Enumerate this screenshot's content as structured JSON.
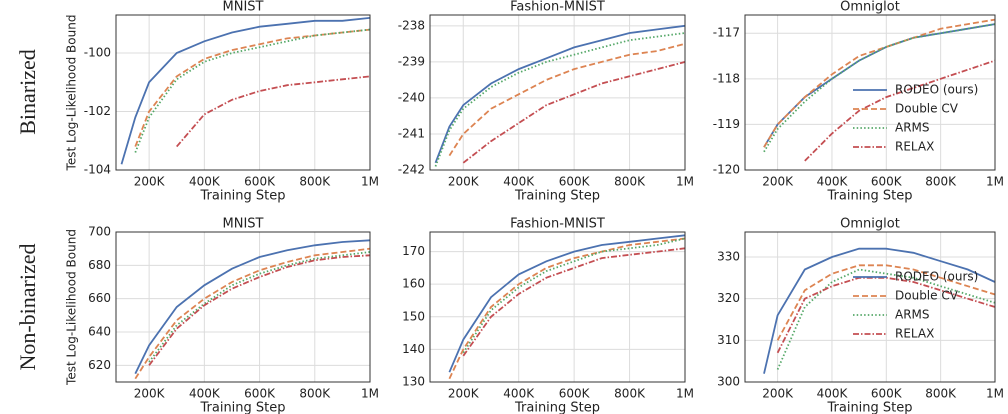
{
  "row_labels": [
    "Binarized",
    "Non-binarized"
  ],
  "chart_data": [
    {
      "type": "line",
      "title": "MNIST",
      "ylabel": "Test Log-Likelihood Bound",
      "xlabel": "Training Step",
      "grid": true,
      "x": [
        100000,
        150000,
        200000,
        300000,
        400000,
        500000,
        600000,
        700000,
        800000,
        900000,
        1000000
      ],
      "xlim": [
        80000,
        1000000
      ],
      "xticks": [
        {
          "value": 200000,
          "label": "200K"
        },
        {
          "value": 400000,
          "label": "400K"
        },
        {
          "value": 600000,
          "label": "600K"
        },
        {
          "value": 800000,
          "label": "800K"
        },
        {
          "value": 1000000,
          "label": "1M"
        }
      ],
      "ylim": [
        -104,
        -98.7
      ],
      "yticks": [
        -104,
        -102,
        -100
      ],
      "series": [
        {
          "color": "#4c72b0",
          "style": "solid",
          "values": [
            -103.8,
            -102.2,
            -101.0,
            -100.0,
            -99.6,
            -99.3,
            -99.1,
            -99.0,
            -98.9,
            -98.9,
            -98.8
          ]
        },
        {
          "color": "#dd8452",
          "style": "dashed",
          "values": [
            null,
            -103.2,
            -102.0,
            -100.8,
            -100.2,
            -99.9,
            -99.7,
            -99.5,
            -99.4,
            -99.3,
            -99.2
          ]
        },
        {
          "color": "#55a868",
          "style": "dotted",
          "values": [
            null,
            -103.4,
            -102.2,
            -100.9,
            -100.3,
            -100.0,
            -99.8,
            -99.6,
            -99.4,
            -99.3,
            -99.2
          ]
        },
        {
          "color": "#c44e52",
          "style": "dashdot",
          "values": [
            null,
            null,
            null,
            -103.2,
            -102.1,
            -101.6,
            -101.3,
            -101.1,
            -101.0,
            -100.9,
            -100.8
          ]
        }
      ]
    },
    {
      "type": "line",
      "title": "Fashion-MNIST",
      "xlabel": "Training Step",
      "grid": true,
      "x": [
        100000,
        150000,
        200000,
        300000,
        400000,
        500000,
        600000,
        700000,
        800000,
        900000,
        1000000
      ],
      "xlim": [
        80000,
        1000000
      ],
      "xticks": [
        {
          "value": 200000,
          "label": "200K"
        },
        {
          "value": 400000,
          "label": "400K"
        },
        {
          "value": 600000,
          "label": "600K"
        },
        {
          "value": 800000,
          "label": "800K"
        },
        {
          "value": 1000000,
          "label": "1M"
        }
      ],
      "ylim": [
        -242,
        -237.7
      ],
      "yticks": [
        -242,
        -241,
        -240,
        -239,
        -238
      ],
      "series": [
        {
          "color": "#4c72b0",
          "style": "solid",
          "values": [
            -241.8,
            -240.8,
            -240.2,
            -239.6,
            -239.2,
            -238.9,
            -238.6,
            -238.4,
            -238.2,
            -238.1,
            -238.0
          ]
        },
        {
          "color": "#dd8452",
          "style": "dashed",
          "values": [
            null,
            -241.6,
            -241.0,
            -240.3,
            -239.9,
            -239.5,
            -239.2,
            -239.0,
            -238.8,
            -238.7,
            -238.5
          ]
        },
        {
          "color": "#55a868",
          "style": "dotted",
          "values": [
            -241.9,
            -240.9,
            -240.3,
            -239.7,
            -239.3,
            -239.0,
            -238.8,
            -238.6,
            -238.4,
            -238.3,
            -238.2
          ]
        },
        {
          "color": "#c44e52",
          "style": "dashdot",
          "values": [
            null,
            null,
            -241.8,
            -241.2,
            -240.7,
            -240.2,
            -239.9,
            -239.6,
            -239.4,
            -239.2,
            -239.0
          ]
        }
      ]
    },
    {
      "type": "line",
      "title": "Omniglot",
      "xlabel": "Training Step",
      "grid": true,
      "legend": "lower right",
      "x": [
        100000,
        150000,
        200000,
        300000,
        400000,
        500000,
        600000,
        700000,
        800000,
        900000,
        1000000
      ],
      "xlim": [
        80000,
        1000000
      ],
      "xticks": [
        {
          "value": 200000,
          "label": "200K"
        },
        {
          "value": 400000,
          "label": "400K"
        },
        {
          "value": 600000,
          "label": "600K"
        },
        {
          "value": 800000,
          "label": "800K"
        },
        {
          "value": 1000000,
          "label": "1M"
        }
      ],
      "ylim": [
        -120,
        -116.6
      ],
      "yticks": [
        -120,
        -119,
        -118,
        -117
      ],
      "series": [
        {
          "name": "RODEO (ours)",
          "color": "#4c72b0",
          "style": "solid",
          "values": [
            null,
            -119.5,
            -119.0,
            -118.4,
            -118.0,
            -117.6,
            -117.3,
            -117.1,
            -117.0,
            -116.9,
            -116.8
          ]
        },
        {
          "name": "Double CV",
          "color": "#dd8452",
          "style": "dashed",
          "values": [
            null,
            -119.5,
            -119.0,
            -118.4,
            -117.9,
            -117.5,
            -117.3,
            -117.1,
            -116.9,
            -116.8,
            -116.7
          ]
        },
        {
          "name": "ARMS",
          "color": "#55a868",
          "style": "dotted",
          "values": [
            null,
            -119.6,
            -119.1,
            -118.5,
            -118.0,
            -117.6,
            -117.3,
            -117.1,
            -117.0,
            -116.9,
            -116.8
          ]
        },
        {
          "name": "RELAX",
          "color": "#c44e52",
          "style": "dashdot",
          "values": [
            null,
            null,
            null,
            -119.8,
            -119.2,
            -118.7,
            -118.4,
            -118.2,
            -118.0,
            -117.8,
            -117.6
          ]
        }
      ]
    },
    {
      "type": "line",
      "title": "MNIST",
      "ylabel": "Test Log-Likelihood Bound",
      "xlabel": "Training Step",
      "grid": true,
      "x": [
        100000,
        150000,
        200000,
        300000,
        400000,
        500000,
        600000,
        700000,
        800000,
        900000,
        1000000
      ],
      "xlim": [
        80000,
        1000000
      ],
      "xticks": [
        {
          "value": 200000,
          "label": "200K"
        },
        {
          "value": 400000,
          "label": "400K"
        },
        {
          "value": 600000,
          "label": "600K"
        },
        {
          "value": 800000,
          "label": "800K"
        },
        {
          "value": 1000000,
          "label": "1M"
        }
      ],
      "ylim": [
        610,
        700
      ],
      "yticks": [
        620,
        640,
        660,
        680,
        700
      ],
      "series": [
        {
          "color": "#4c72b0",
          "style": "solid",
          "values": [
            null,
            615,
            632,
            655,
            668,
            678,
            685,
            689,
            692,
            694,
            695
          ]
        },
        {
          "color": "#dd8452",
          "style": "dashed",
          "values": [
            null,
            612,
            625,
            647,
            660,
            670,
            677,
            682,
            686,
            688,
            690
          ]
        },
        {
          "color": "#55a868",
          "style": "dotted",
          "values": [
            null,
            null,
            622,
            644,
            657,
            668,
            675,
            680,
            684,
            686,
            688
          ]
        },
        {
          "color": "#c44e52",
          "style": "dashdot",
          "values": [
            null,
            null,
            620,
            642,
            656,
            666,
            673,
            679,
            683,
            685,
            686
          ]
        }
      ]
    },
    {
      "type": "line",
      "title": "Fashion-MNIST",
      "xlabel": "Training Step",
      "grid": true,
      "x": [
        100000,
        150000,
        200000,
        300000,
        400000,
        500000,
        600000,
        700000,
        800000,
        900000,
        1000000
      ],
      "xlim": [
        80000,
        1000000
      ],
      "xticks": [
        {
          "value": 200000,
          "label": "200K"
        },
        {
          "value": 400000,
          "label": "400K"
        },
        {
          "value": 600000,
          "label": "600K"
        },
        {
          "value": 800000,
          "label": "800K"
        },
        {
          "value": 1000000,
          "label": "1M"
        }
      ],
      "ylim": [
        130,
        176
      ],
      "yticks": [
        130,
        140,
        150,
        160,
        170
      ],
      "series": [
        {
          "color": "#4c72b0",
          "style": "solid",
          "values": [
            null,
            133,
            143,
            156,
            163,
            167,
            170,
            172,
            173,
            174,
            175
          ]
        },
        {
          "color": "#dd8452",
          "style": "dashed",
          "values": [
            null,
            131,
            140,
            153,
            160,
            165,
            168,
            170,
            172,
            173,
            174
          ]
        },
        {
          "color": "#55a868",
          "style": "dotted",
          "values": [
            null,
            null,
            139,
            152,
            159,
            164,
            167,
            170,
            171,
            172,
            174
          ]
        },
        {
          "color": "#c44e52",
          "style": "dashdot",
          "values": [
            null,
            null,
            138,
            150,
            157,
            162,
            165,
            168,
            169,
            170,
            171
          ]
        }
      ]
    },
    {
      "type": "line",
      "title": "Omniglot",
      "xlabel": "Training Step",
      "grid": true,
      "legend": "center right",
      "x": [
        100000,
        150000,
        200000,
        300000,
        400000,
        500000,
        600000,
        700000,
        800000,
        900000,
        1000000
      ],
      "xlim": [
        80000,
        1000000
      ],
      "xticks": [
        {
          "value": 200000,
          "label": "200K"
        },
        {
          "value": 400000,
          "label": "400K"
        },
        {
          "value": 600000,
          "label": "600K"
        },
        {
          "value": 800000,
          "label": "800K"
        },
        {
          "value": 1000000,
          "label": "1M"
        }
      ],
      "ylim": [
        300,
        336
      ],
      "yticks": [
        300,
        310,
        320,
        330
      ],
      "series": [
        {
          "name": "RODEO (ours)",
          "color": "#4c72b0",
          "style": "solid",
          "values": [
            null,
            302,
            316,
            327,
            330,
            332,
            332,
            331,
            329,
            327,
            324
          ]
        },
        {
          "name": "Double CV",
          "color": "#dd8452",
          "style": "dashed",
          "values": [
            null,
            null,
            310,
            322,
            326,
            328,
            328,
            327,
            325,
            323,
            321
          ]
        },
        {
          "name": "ARMS",
          "color": "#55a868",
          "style": "dotted",
          "values": [
            null,
            null,
            303,
            318,
            324,
            327,
            326,
            325,
            323,
            321,
            319
          ]
        },
        {
          "name": "RELAX",
          "color": "#c44e52",
          "style": "dashdot",
          "values": [
            null,
            null,
            307,
            320,
            323,
            325,
            325,
            324,
            322,
            320,
            318
          ]
        }
      ]
    }
  ]
}
